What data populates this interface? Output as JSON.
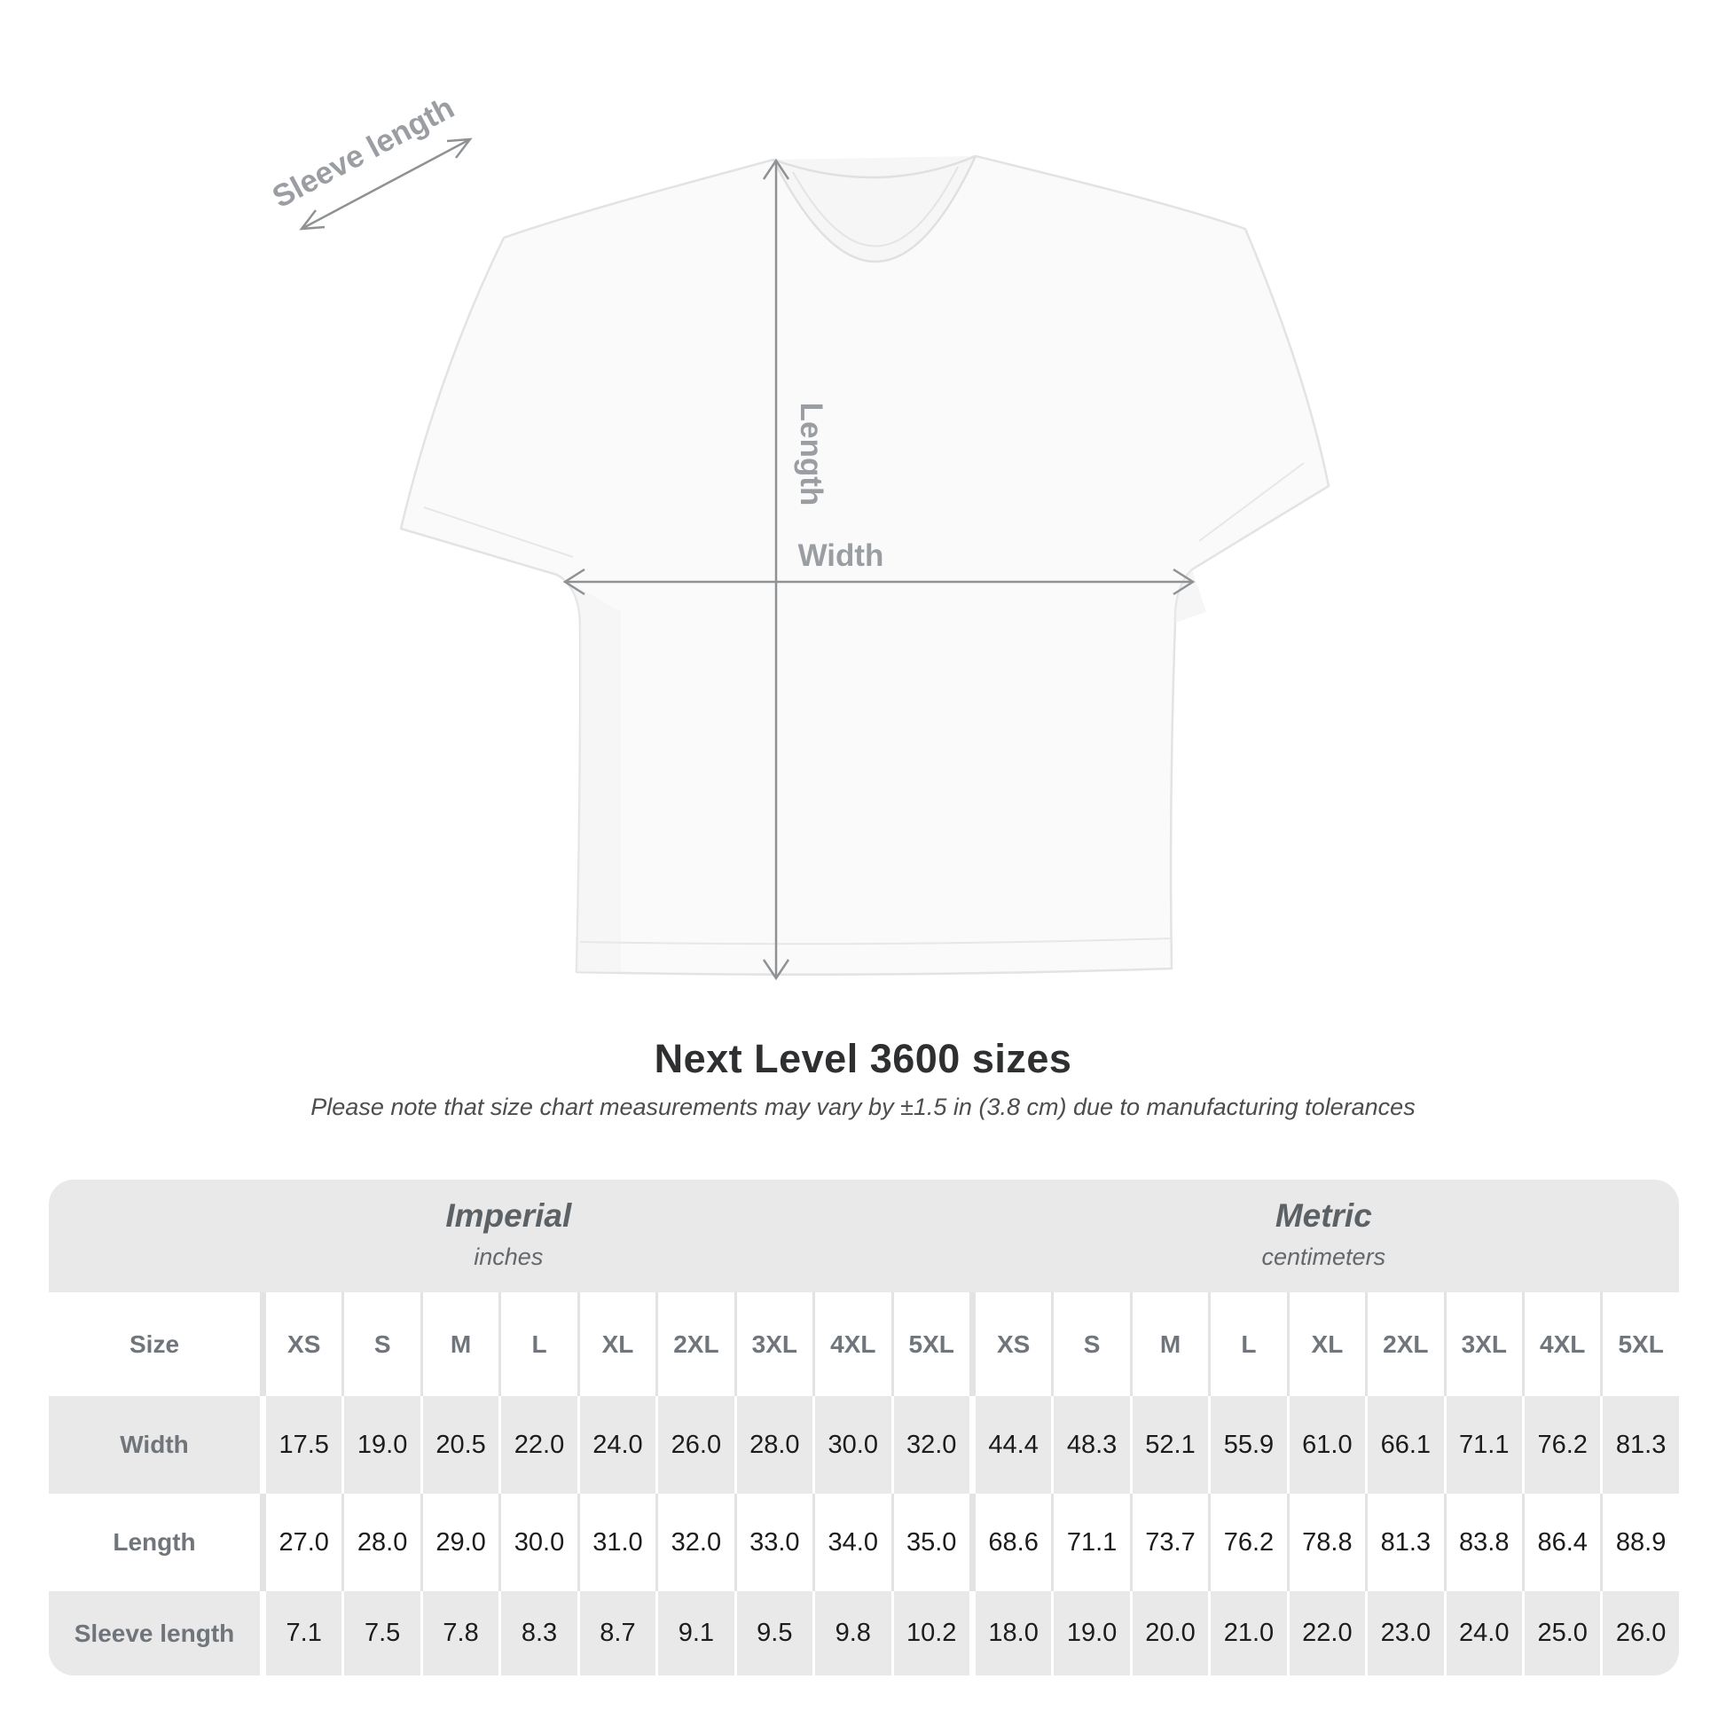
{
  "diagram": {
    "sleeve_label": "Sleeve length",
    "length_label": "Length",
    "width_label": "Width"
  },
  "heading": {
    "title": "Next Level 3600 sizes",
    "note": "Please note that size chart measurements may vary by ±1.5 in (3.8 cm) due to manufacturing tolerances"
  },
  "size_table": {
    "corner_header": "Size",
    "sections": [
      {
        "name": "Imperial",
        "unit": "inches",
        "sizes": [
          "XS",
          "S",
          "M",
          "L",
          "XL",
          "2XL",
          "3XL",
          "4XL",
          "5XL"
        ]
      },
      {
        "name": "Metric",
        "unit": "centimeters",
        "sizes": [
          "XS",
          "S",
          "M",
          "L",
          "XL",
          "2XL",
          "3XL",
          "4XL",
          "5XL"
        ]
      }
    ],
    "rows": [
      {
        "label": "Width",
        "imperial": [
          "17.5",
          "19.0",
          "20.5",
          "22.0",
          "24.0",
          "26.0",
          "28.0",
          "30.0",
          "32.0"
        ],
        "metric": [
          "44.4",
          "48.3",
          "52.1",
          "55.9",
          "61.0",
          "66.1",
          "71.1",
          "76.2",
          "81.3"
        ]
      },
      {
        "label": "Length",
        "imperial": [
          "27.0",
          "28.0",
          "29.0",
          "30.0",
          "31.0",
          "32.0",
          "33.0",
          "34.0",
          "35.0"
        ],
        "metric": [
          "68.6",
          "71.1",
          "73.7",
          "76.2",
          "78.8",
          "81.3",
          "83.8",
          "86.4",
          "88.9"
        ]
      },
      {
        "label": "Sleeve length",
        "imperial": [
          "7.1",
          "7.5",
          "7.8",
          "8.3",
          "8.7",
          "9.1",
          "9.5",
          "9.8",
          "10.2"
        ],
        "metric": [
          "18.0",
          "19.0",
          "20.0",
          "21.0",
          "22.0",
          "23.0",
          "24.0",
          "25.0",
          "26.0"
        ]
      }
    ]
  },
  "chart_data": {
    "type": "table",
    "title": "Next Level 3600 sizes",
    "note": "Please note that size chart measurements may vary by ±1.5 in (3.8 cm) due to manufacturing tolerances",
    "columns": [
      "XS",
      "S",
      "M",
      "L",
      "XL",
      "2XL",
      "3XL",
      "4XL",
      "5XL"
    ],
    "measurements": {
      "imperial_inches": {
        "Width": [
          17.5,
          19.0,
          20.5,
          22.0,
          24.0,
          26.0,
          28.0,
          30.0,
          32.0
        ],
        "Length": [
          27.0,
          28.0,
          29.0,
          30.0,
          31.0,
          32.0,
          33.0,
          34.0,
          35.0
        ],
        "Sleeve length": [
          7.1,
          7.5,
          7.8,
          8.3,
          8.7,
          9.1,
          9.5,
          9.8,
          10.2
        ]
      },
      "metric_centimeters": {
        "Width": [
          44.4,
          48.3,
          52.1,
          55.9,
          61.0,
          66.1,
          71.1,
          76.2,
          81.3
        ],
        "Length": [
          68.6,
          71.1,
          73.7,
          76.2,
          78.8,
          81.3,
          83.8,
          86.4,
          88.9
        ],
        "Sleeve length": [
          18.0,
          19.0,
          20.0,
          21.0,
          22.0,
          23.0,
          24.0,
          25.0,
          26.0
        ]
      }
    }
  },
  "colors": {
    "table_stripe": "#e9e9e9",
    "table_label_gray": "#6f757a",
    "value_text": "#1c1c1c",
    "arrow_gray": "#8f9294",
    "diagram_label_gray": "#9a9ea2",
    "title_dark": "#2e2f30",
    "shirt_fill": "#fafafa",
    "shirt_outline": "#e3e3e3"
  }
}
